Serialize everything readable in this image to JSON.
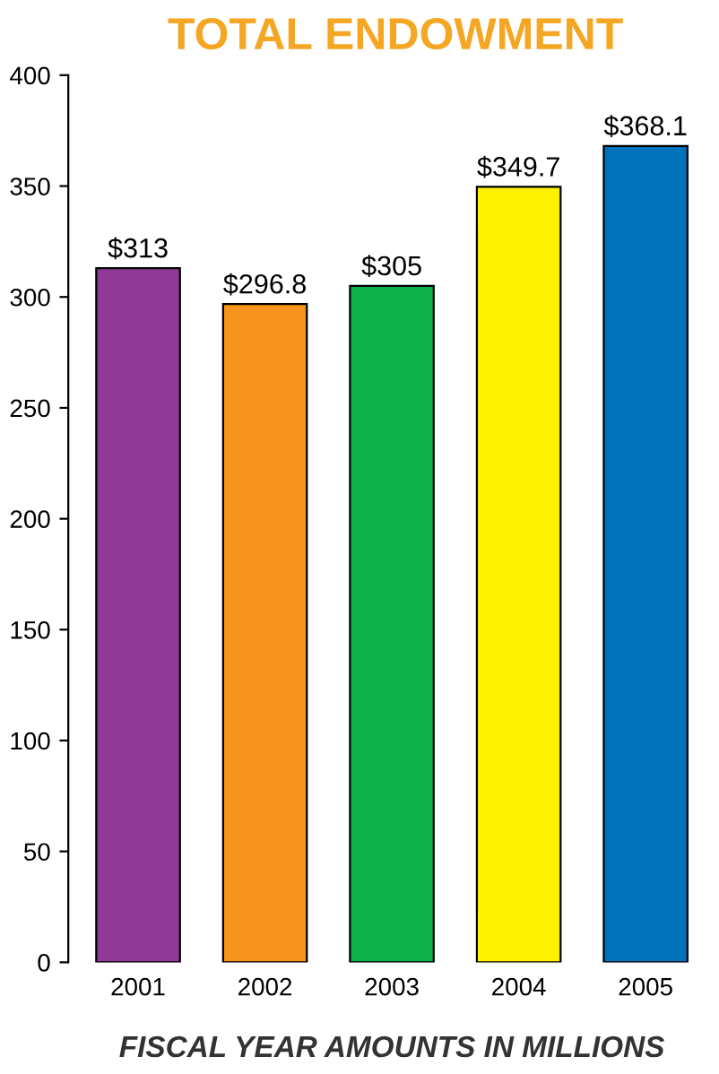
{
  "chart_data": {
    "type": "bar",
    "title": "TOTAL ENDOWMENT",
    "xlabel": "FISCAL YEAR AMOUNTS IN MILLIONS",
    "categories": [
      "2001",
      "2002",
      "2003",
      "2004",
      "2005"
    ],
    "values": [
      313,
      296.8,
      305,
      349.7,
      368.1
    ],
    "value_labels": [
      "$313",
      "$296.8",
      "$305",
      "$349.7",
      "$368.1"
    ],
    "colors": [
      "#8e3a96",
      "#f7941d",
      "#0db04b",
      "#fff200",
      "#0072bc"
    ],
    "ylim": [
      0,
      400
    ],
    "yticks": [
      0,
      50,
      100,
      150,
      200,
      250,
      300,
      350,
      400
    ],
    "grid": false,
    "legend": false
  }
}
